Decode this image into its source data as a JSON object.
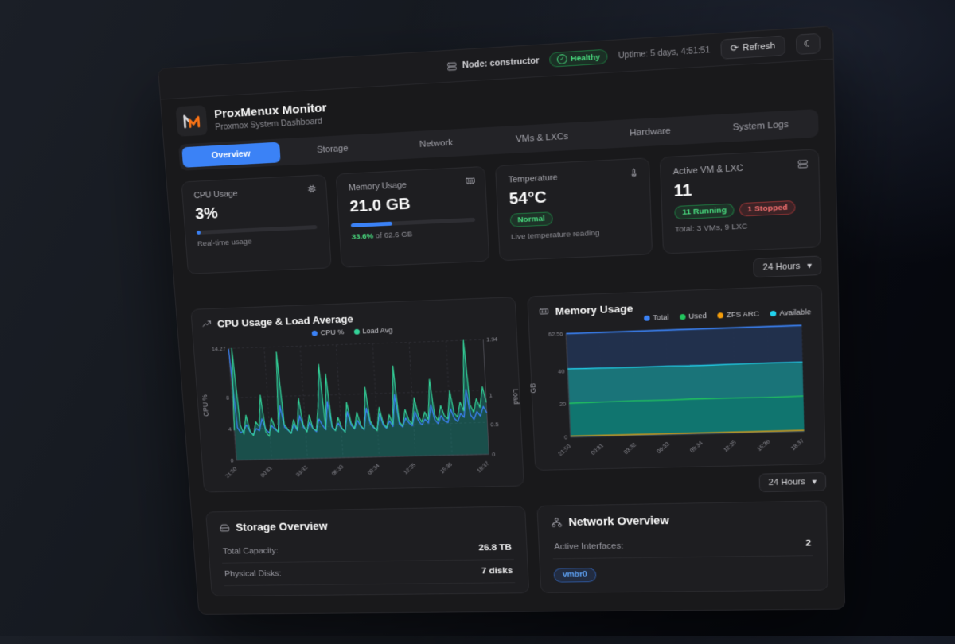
{
  "topbar": {
    "node_label": "Node: constructor",
    "health_label": "Healthy",
    "uptime_label": "Uptime: 5 days, 4:51:51",
    "refresh_label": "Refresh"
  },
  "icons": {
    "refresh": "⟳",
    "moon": "☾",
    "chevron_down": "▾",
    "check": "✓"
  },
  "header": {
    "title": "ProxMenux Monitor",
    "subtitle": "Proxmox System Dashboard"
  },
  "tabs": [
    {
      "label": "Overview",
      "active": true
    },
    {
      "label": "Storage",
      "active": false
    },
    {
      "label": "Network",
      "active": false
    },
    {
      "label": "VMs & LXCs",
      "active": false
    },
    {
      "label": "Hardware",
      "active": false
    },
    {
      "label": "System Logs",
      "active": false
    }
  ],
  "stats": {
    "cpu": {
      "title": "CPU Usage",
      "value": "3%",
      "percent": 3,
      "caption": "Real-time usage"
    },
    "memory": {
      "title": "Memory Usage",
      "value": "21.0 GB",
      "percent": 33.6,
      "caption_pct": "33.6%",
      "caption_rest": " of 62.6 GB"
    },
    "temperature": {
      "title": "Temperature",
      "value": "54°C",
      "badge": "Normal",
      "caption": "Live temperature reading"
    },
    "vms": {
      "title": "Active VM & LXC",
      "value": "11",
      "running": "11 Running",
      "stopped": "1 Stopped",
      "caption": "Total: 3 VMs, 9 LXC"
    }
  },
  "range_selector": {
    "label": "24 Hours"
  },
  "range_selector_2": {
    "label": "24 Hours"
  },
  "sections": {
    "storage": {
      "title": "Storage Overview",
      "rows": [
        {
          "label": "Total Capacity:",
          "value": "26.8 TB"
        },
        {
          "label": "Physical Disks:",
          "value": "7 disks"
        }
      ]
    },
    "network": {
      "title": "Network Overview",
      "rows": [
        {
          "label": "Active Interfaces:",
          "value": "2"
        }
      ],
      "interface_badge": "vmbr0"
    }
  },
  "colors": {
    "accent": "#3b82f6",
    "green": "#22c55e",
    "red": "#ef4444",
    "logo_orange": "#f97316",
    "teal": "#14b8a6",
    "cyan": "#22d3ee",
    "amber": "#f59e0b"
  },
  "chart_data": [
    {
      "type": "line",
      "title": "CPU Usage & Load Average",
      "ylabel": "CPU %",
      "y2label": "Load",
      "ylim": [
        0,
        14.27
      ],
      "y2lim": [
        0,
        1.94
      ],
      "yticks": [
        0,
        4,
        8,
        14.27
      ],
      "y2ticks": [
        0,
        0.5,
        1,
        1.94
      ],
      "grid": true,
      "legend_position": "top",
      "categories": [
        "21:50",
        "00:31",
        "03:32",
        "06:33",
        "09:34",
        "12:35",
        "15:36",
        "18:37"
      ],
      "series": [
        {
          "name": "CPU %",
          "color": "#3b82f6",
          "axis": "left",
          "width": 1.4,
          "values": [
            14.2,
            4.2,
            3.5,
            3.8,
            4.5,
            3.6,
            3.2,
            4.0,
            3.7,
            5.2,
            3.9,
            3.4,
            4.3,
            3.8,
            3.5,
            6.8,
            4.1,
            3.7,
            3.3,
            4.4,
            3.6,
            5.5,
            4.0,
            3.5,
            4.6,
            3.8,
            3.4,
            5.0,
            4.2,
            3.6,
            7.2,
            3.9,
            3.5,
            4.4,
            3.7,
            3.3,
            5.8,
            4.1,
            3.6,
            4.7,
            3.9,
            3.5,
            6.2,
            4.2,
            3.7,
            3.4,
            5.4,
            4.0,
            3.6,
            4.5,
            3.8,
            7.8,
            4.1,
            3.7,
            4.8,
            4.2,
            3.8,
            5.6,
            4.4,
            3.9,
            4.6,
            4.1,
            6.4,
            4.5,
            4.0,
            5.0,
            4.3,
            4.1,
            5.8,
            4.6,
            4.2,
            5.2,
            4.7,
            8.2,
            5.0,
            4.4,
            5.4,
            4.8,
            6.0,
            5.2
          ]
        },
        {
          "name": "Load Avg",
          "color": "#34d399",
          "axis": "right",
          "width": 1.3,
          "fill": "#14b8a6",
          "fill_opacity": 0.32,
          "fill_order": 0,
          "values": [
            0.52,
            1.94,
            0.61,
            0.45,
            0.78,
            0.5,
            0.42,
            0.66,
            0.58,
            1.12,
            0.48,
            0.4,
            0.72,
            0.55,
            0.47,
            1.85,
            0.6,
            0.52,
            0.44,
            0.68,
            0.5,
            1.05,
            0.58,
            0.46,
            0.75,
            0.52,
            0.48,
            0.9,
            1.62,
            0.5,
            1.45,
            0.55,
            0.47,
            0.7,
            0.52,
            0.44,
            0.95,
            0.6,
            0.5,
            0.78,
            0.55,
            0.48,
            1.2,
            0.62,
            0.52,
            0.45,
            0.85,
            0.58,
            0.5,
            0.72,
            0.55,
            1.55,
            0.6,
            0.52,
            0.8,
            0.62,
            0.55,
            1.0,
            0.68,
            0.58,
            0.75,
            0.62,
            1.3,
            0.7,
            0.6,
            0.85,
            0.68,
            0.62,
            1.1,
            0.72,
            0.65,
            0.9,
            0.75,
            1.94,
            0.85,
            0.72,
            0.95,
            0.8,
            1.15,
            0.88
          ]
        }
      ]
    },
    {
      "type": "area",
      "title": "Memory Usage",
      "ylabel": "GB",
      "ylim": [
        0,
        62.56
      ],
      "yticks": [
        0,
        20,
        40,
        62.56
      ],
      "grid": true,
      "legend_position": "top-right",
      "categories": [
        "21:50",
        "00:31",
        "03:32",
        "06:33",
        "09:34",
        "12:35",
        "15:36",
        "18:37"
      ],
      "series": [
        {
          "name": "Total",
          "color": "#3b82f6",
          "axis": "left",
          "width": 1.8,
          "fill": "#22314f",
          "fill_opacity": 0.95,
          "fill_order": 0,
          "values": [
            62.56,
            62.56,
            62.56,
            62.56,
            62.56,
            62.56,
            62.56,
            62.56
          ]
        },
        {
          "name": "Used",
          "color": "#22c55e",
          "axis": "left",
          "width": 1.5,
          "fill": "#0f766e",
          "fill_opacity": 0.9,
          "fill_order": 2,
          "values": [
            20.6,
            20.8,
            21.0,
            20.9,
            21.2,
            21.0,
            20.8,
            21.0
          ]
        },
        {
          "name": "ZFS ARC",
          "color": "#f59e0b",
          "axis": "left",
          "width": 1.4,
          "values": [
            0.7,
            0.7,
            0.7,
            0.7,
            0.7,
            0.7,
            0.7,
            0.7
          ]
        },
        {
          "name": "Available",
          "color": "#22d3ee",
          "axis": "left",
          "width": 1.5,
          "fill": "#14b8a6",
          "fill_opacity": 0.5,
          "fill_order": 1,
          "values": [
            41.4,
            41.2,
            41.1,
            41.2,
            40.9,
            41.1,
            41.2,
            41.1
          ]
        }
      ]
    }
  ]
}
